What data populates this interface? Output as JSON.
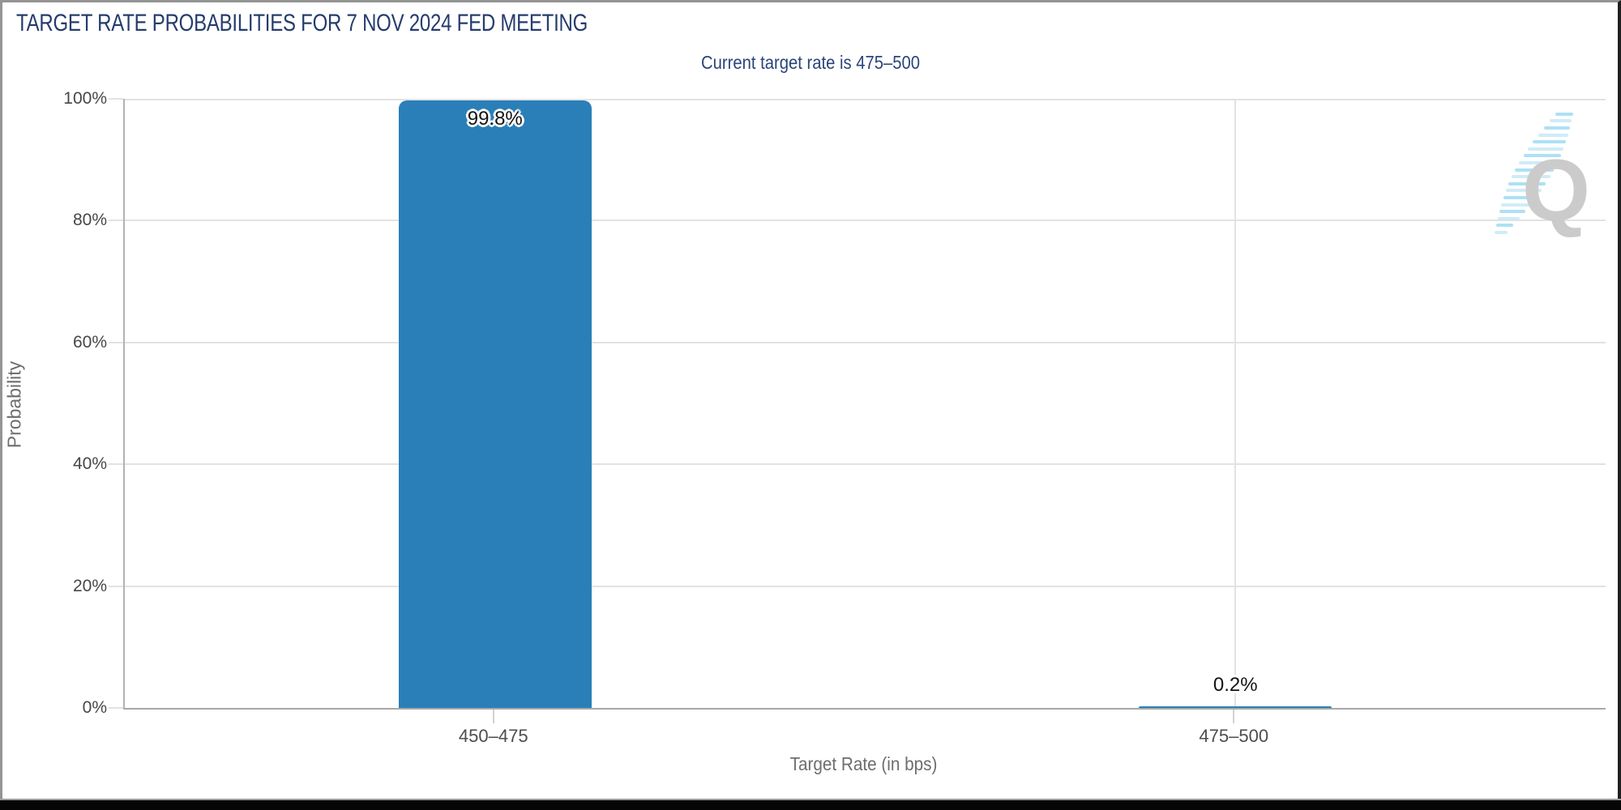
{
  "chart_data": {
    "type": "bar",
    "title": "TARGET RATE PROBABILITIES FOR 7 NOV 2024 FED MEETING",
    "subtitle": "Current target rate is 475–500",
    "categories": [
      "450–475",
      "475–500"
    ],
    "values": [
      99.8,
      0.2
    ],
    "value_labels": [
      "99.8%",
      "0.2%"
    ],
    "xlabel": "Target Rate (in bps)",
    "ylabel": "Probability",
    "ylim": [
      0,
      100
    ],
    "yticks": [
      {
        "value": 0,
        "label": "0%"
      },
      {
        "value": 20,
        "label": "20%"
      },
      {
        "value": 40,
        "label": "40%"
      },
      {
        "value": 60,
        "label": "60%"
      },
      {
        "value": 80,
        "label": "80%"
      },
      {
        "value": 100,
        "label": "100%"
      }
    ],
    "grid": true,
    "legend": "none",
    "bar_color": "#2A7FB8"
  },
  "watermark": {
    "letter": "Q"
  },
  "colors": {
    "title_navy": "#253C6D",
    "subtitle_navy": "#2A4579",
    "bar_blue": "#2A7FB8",
    "gridline": "#E2E2E2",
    "axis_line": "#ABABAB",
    "tick_label_gray": "#474747",
    "axis_title_gray": "#6E6E6E",
    "value_label_black": "#141414",
    "watermark_gray": "#C9C9C9",
    "watermark_blue": "#A9E0F5",
    "border_gray": "#949494",
    "border_black": "#1F1F1F"
  }
}
